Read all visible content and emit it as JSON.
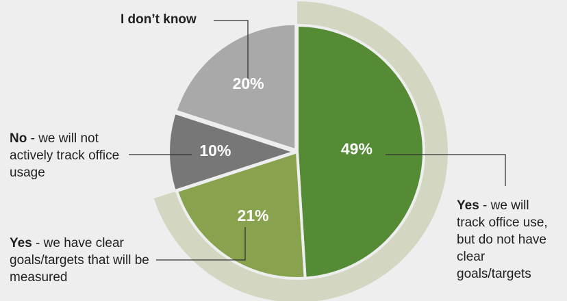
{
  "chart_data": {
    "type": "pie",
    "title": "",
    "slices": [
      {
        "value": 49,
        "label": "49%",
        "bold": "Yes",
        "rest": " - we will track office use, but do not have clear goals/targets",
        "color": "#548b34"
      },
      {
        "value": 21,
        "label": "21%",
        "bold": "Yes",
        "rest": " - we have clear goals/targets that will be measured",
        "color": "#88a24e"
      },
      {
        "value": 10,
        "label": "10%",
        "bold": "No",
        "rest": " - we will not actively track office usage",
        "color": "#777777"
      },
      {
        "value": 20,
        "label": "20%",
        "bold": "I don’t know",
        "rest": "",
        "color": "#a9a9a9"
      }
    ],
    "highlight_color": "#d3d7c1",
    "highlight_covers": "Yes"
  }
}
